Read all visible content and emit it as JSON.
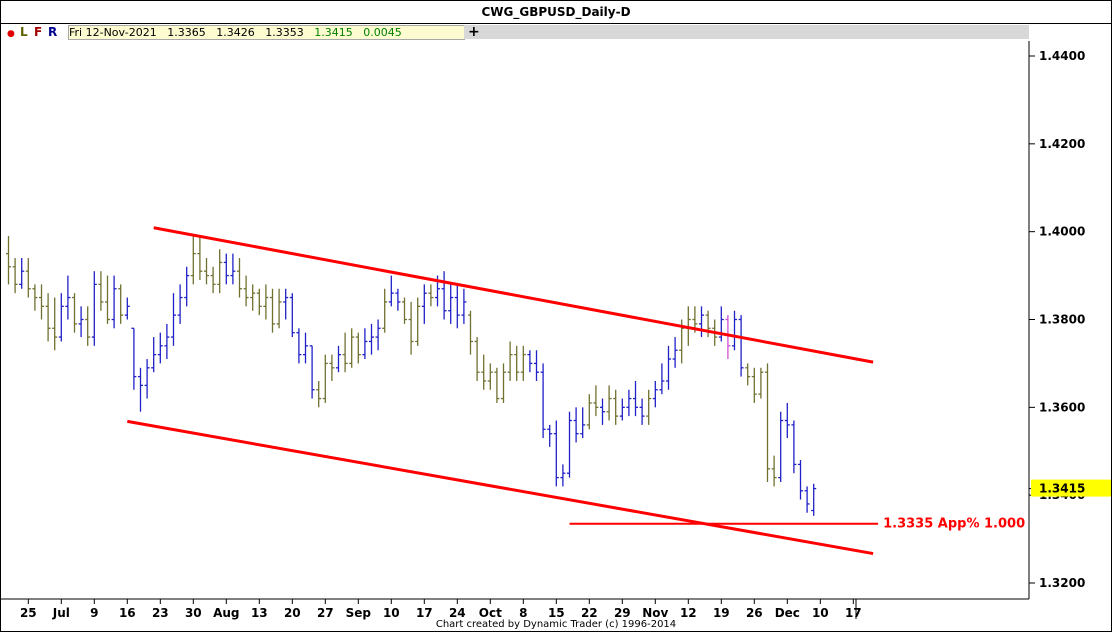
{
  "window": {
    "title": "CWG_GBPUSD_Daily-D"
  },
  "toolbar": {
    "dot": "●",
    "buttons": [
      {
        "label": "L",
        "color": "#606000"
      },
      {
        "label": "F",
        "color": "#a00000"
      },
      {
        "label": "R",
        "color": "#000090"
      }
    ],
    "plus": "+"
  },
  "infobox": {
    "date": "Fri 12-Nov-2021",
    "open": "1.3365",
    "high": "1.3426",
    "low": "1.3353",
    "close": "1.3415",
    "change": "0.0045"
  },
  "footer": "Chart created by Dynamic Trader  (c) 1996-2014",
  "chart_data": {
    "type": "ohlc-bar",
    "title": "CWG_GBPUSD_Daily-D",
    "price_range": [
      1.315,
      1.447
    ],
    "y_ticks": [
      "1.4400",
      "1.4200",
      "1.4000",
      "1.3800",
      "1.3600",
      "1.3400",
      "1.3200"
    ],
    "y_tick_values": [
      1.44,
      1.42,
      1.4,
      1.38,
      1.36,
      1.34,
      1.32
    ],
    "x_labels": [
      "25",
      "Jul",
      "9",
      "16",
      "23",
      "30",
      "Aug",
      "13",
      "20",
      "27",
      "Sep",
      "10",
      "17",
      "24",
      "Oct",
      "8",
      "15",
      "22",
      "29",
      "Nov",
      "12",
      "19",
      "26",
      "Dec",
      "10",
      "17"
    ],
    "x_label_bars": [
      3,
      8,
      13,
      18,
      23,
      28,
      33,
      38,
      43,
      48,
      53,
      58,
      63,
      68,
      73,
      78,
      83,
      88,
      93,
      98,
      103,
      108,
      113,
      118,
      123,
      128
    ],
    "current_price_label": "1.3415",
    "current_price": 1.3415,
    "channel_lines": [
      {
        "from_bar": 22,
        "from_price": 1.4009,
        "to_bar": 131,
        "to_price": 1.3703
      },
      {
        "from_bar": 18,
        "from_price": 1.3568,
        "to_bar": 131,
        "to_price": 1.3267
      }
    ],
    "target": {
      "price": 1.3335,
      "from_bar": 85,
      "to_bar": 131,
      "label": "1.3335 App% 1.000"
    },
    "colors": {
      "up": "#2020c8",
      "down": "#707030",
      "special": "#d050d0",
      "channel": "#ff0000",
      "price_box": "#ffff00"
    },
    "bars": [
      {
        "o": 1.395,
        "h": 1.399,
        "l": 1.388,
        "c": 1.392,
        "dir": "down"
      },
      {
        "o": 1.392,
        "h": 1.394,
        "l": 1.386,
        "c": 1.388,
        "dir": "down"
      },
      {
        "o": 1.388,
        "h": 1.394,
        "l": 1.387,
        "c": 1.391,
        "dir": "up"
      },
      {
        "o": 1.391,
        "h": 1.394,
        "l": 1.385,
        "c": 1.387,
        "dir": "down"
      },
      {
        "o": 1.387,
        "h": 1.388,
        "l": 1.382,
        "c": 1.385,
        "dir": "down"
      },
      {
        "o": 1.385,
        "h": 1.388,
        "l": 1.38,
        "c": 1.383,
        "dir": "down"
      },
      {
        "o": 1.383,
        "h": 1.386,
        "l": 1.375,
        "c": 1.378,
        "dir": "down"
      },
      {
        "o": 1.378,
        "h": 1.385,
        "l": 1.373,
        "c": 1.376,
        "dir": "down"
      },
      {
        "o": 1.376,
        "h": 1.386,
        "l": 1.375,
        "c": 1.383,
        "dir": "up"
      },
      {
        "o": 1.383,
        "h": 1.39,
        "l": 1.38,
        "c": 1.385,
        "dir": "up"
      },
      {
        "o": 1.385,
        "h": 1.386,
        "l": 1.377,
        "c": 1.379,
        "dir": "down"
      },
      {
        "o": 1.379,
        "h": 1.383,
        "l": 1.376,
        "c": 1.38,
        "dir": "up"
      },
      {
        "o": 1.38,
        "h": 1.383,
        "l": 1.374,
        "c": 1.376,
        "dir": "down"
      },
      {
        "o": 1.376,
        "h": 1.391,
        "l": 1.374,
        "c": 1.388,
        "dir": "up"
      },
      {
        "o": 1.388,
        "h": 1.391,
        "l": 1.382,
        "c": 1.384,
        "dir": "down"
      },
      {
        "o": 1.384,
        "h": 1.39,
        "l": 1.379,
        "c": 1.38,
        "dir": "down"
      },
      {
        "o": 1.38,
        "h": 1.39,
        "l": 1.378,
        "c": 1.387,
        "dir": "up"
      },
      {
        "o": 1.387,
        "h": 1.388,
        "l": 1.379,
        "c": 1.381,
        "dir": "down"
      },
      {
        "o": 1.381,
        "h": 1.385,
        "l": 1.38,
        "c": 1.383,
        "dir": "up"
      },
      {
        "o": 1.378,
        "h": 1.378,
        "l": 1.364,
        "c": 1.367,
        "dir": "up"
      },
      {
        "o": 1.367,
        "h": 1.369,
        "l": 1.359,
        "c": 1.365,
        "dir": "up"
      },
      {
        "o": 1.365,
        "h": 1.371,
        "l": 1.362,
        "c": 1.369,
        "dir": "up"
      },
      {
        "o": 1.369,
        "h": 1.376,
        "l": 1.368,
        "c": 1.372,
        "dir": "up"
      },
      {
        "o": 1.372,
        "h": 1.377,
        "l": 1.37,
        "c": 1.374,
        "dir": "up"
      },
      {
        "o": 1.374,
        "h": 1.379,
        "l": 1.371,
        "c": 1.376,
        "dir": "up"
      },
      {
        "o": 1.376,
        "h": 1.386,
        "l": 1.374,
        "c": 1.381,
        "dir": "up"
      },
      {
        "o": 1.381,
        "h": 1.388,
        "l": 1.379,
        "c": 1.385,
        "dir": "up"
      },
      {
        "o": 1.385,
        "h": 1.392,
        "l": 1.383,
        "c": 1.39,
        "dir": "up"
      },
      {
        "o": 1.39,
        "h": 1.399,
        "l": 1.388,
        "c": 1.395,
        "dir": "down"
      },
      {
        "o": 1.395,
        "h": 1.399,
        "l": 1.389,
        "c": 1.391,
        "dir": "down"
      },
      {
        "o": 1.391,
        "h": 1.394,
        "l": 1.388,
        "c": 1.39,
        "dir": "down"
      },
      {
        "o": 1.39,
        "h": 1.392,
        "l": 1.386,
        "c": 1.388,
        "dir": "down"
      },
      {
        "o": 1.388,
        "h": 1.396,
        "l": 1.386,
        "c": 1.393,
        "dir": "down"
      },
      {
        "o": 1.393,
        "h": 1.395,
        "l": 1.388,
        "c": 1.39,
        "dir": "up"
      },
      {
        "o": 1.39,
        "h": 1.395,
        "l": 1.388,
        "c": 1.391,
        "dir": "up"
      },
      {
        "o": 1.391,
        "h": 1.394,
        "l": 1.385,
        "c": 1.387,
        "dir": "down"
      },
      {
        "o": 1.387,
        "h": 1.39,
        "l": 1.383,
        "c": 1.385,
        "dir": "down"
      },
      {
        "o": 1.385,
        "h": 1.388,
        "l": 1.382,
        "c": 1.386,
        "dir": "down"
      },
      {
        "o": 1.386,
        "h": 1.387,
        "l": 1.381,
        "c": 1.383,
        "dir": "down"
      },
      {
        "o": 1.383,
        "h": 1.388,
        "l": 1.38,
        "c": 1.385,
        "dir": "down"
      },
      {
        "o": 1.385,
        "h": 1.387,
        "l": 1.377,
        "c": 1.379,
        "dir": "down"
      },
      {
        "o": 1.379,
        "h": 1.387,
        "l": 1.378,
        "c": 1.384,
        "dir": "down"
      },
      {
        "o": 1.384,
        "h": 1.387,
        "l": 1.38,
        "c": 1.385,
        "dir": "up"
      },
      {
        "o": 1.385,
        "h": 1.386,
        "l": 1.376,
        "c": 1.377,
        "dir": "up"
      },
      {
        "o": 1.377,
        "h": 1.378,
        "l": 1.37,
        "c": 1.372,
        "dir": "up"
      },
      {
        "o": 1.372,
        "h": 1.377,
        "l": 1.37,
        "c": 1.374,
        "dir": "up"
      },
      {
        "o": 1.374,
        "h": 1.374,
        "l": 1.362,
        "c": 1.364,
        "dir": "up"
      },
      {
        "o": 1.364,
        "h": 1.366,
        "l": 1.36,
        "c": 1.362,
        "dir": "down"
      },
      {
        "o": 1.362,
        "h": 1.372,
        "l": 1.361,
        "c": 1.37,
        "dir": "down"
      },
      {
        "o": 1.37,
        "h": 1.372,
        "l": 1.366,
        "c": 1.369,
        "dir": "down"
      },
      {
        "o": 1.369,
        "h": 1.374,
        "l": 1.368,
        "c": 1.372,
        "dir": "up"
      },
      {
        "o": 1.372,
        "h": 1.377,
        "l": 1.368,
        "c": 1.37,
        "dir": "down"
      },
      {
        "o": 1.37,
        "h": 1.378,
        "l": 1.369,
        "c": 1.376,
        "dir": "down"
      },
      {
        "o": 1.376,
        "h": 1.377,
        "l": 1.37,
        "c": 1.372,
        "dir": "down"
      },
      {
        "o": 1.372,
        "h": 1.378,
        "l": 1.371,
        "c": 1.375,
        "dir": "up"
      },
      {
        "o": 1.375,
        "h": 1.379,
        "l": 1.372,
        "c": 1.376,
        "dir": "up"
      },
      {
        "o": 1.376,
        "h": 1.38,
        "l": 1.373,
        "c": 1.378,
        "dir": "up"
      },
      {
        "o": 1.378,
        "h": 1.387,
        "l": 1.377,
        "c": 1.384,
        "dir": "down"
      },
      {
        "o": 1.384,
        "h": 1.39,
        "l": 1.383,
        "c": 1.386,
        "dir": "up"
      },
      {
        "o": 1.386,
        "h": 1.387,
        "l": 1.382,
        "c": 1.384,
        "dir": "up"
      },
      {
        "o": 1.384,
        "h": 1.385,
        "l": 1.379,
        "c": 1.38,
        "dir": "down"
      },
      {
        "o": 1.38,
        "h": 1.384,
        "l": 1.372,
        "c": 1.375,
        "dir": "down"
      },
      {
        "o": 1.375,
        "h": 1.385,
        "l": 1.374,
        "c": 1.383,
        "dir": "down"
      },
      {
        "o": 1.383,
        "h": 1.388,
        "l": 1.379,
        "c": 1.386,
        "dir": "up"
      },
      {
        "o": 1.386,
        "h": 1.388,
        "l": 1.383,
        "c": 1.385,
        "dir": "down"
      },
      {
        "o": 1.385,
        "h": 1.39,
        "l": 1.383,
        "c": 1.387,
        "dir": "up"
      },
      {
        "o": 1.387,
        "h": 1.391,
        "l": 1.38,
        "c": 1.382,
        "dir": "up"
      },
      {
        "o": 1.382,
        "h": 1.388,
        "l": 1.379,
        "c": 1.385,
        "dir": "up"
      },
      {
        "o": 1.385,
        "h": 1.388,
        "l": 1.378,
        "c": 1.381,
        "dir": "up"
      },
      {
        "o": 1.381,
        "h": 1.387,
        "l": 1.379,
        "c": 1.384,
        "dir": "up"
      },
      {
        "o": 1.381,
        "h": 1.382,
        "l": 1.372,
        "c": 1.375,
        "dir": "down"
      },
      {
        "o": 1.375,
        "h": 1.376,
        "l": 1.366,
        "c": 1.368,
        "dir": "down"
      },
      {
        "o": 1.368,
        "h": 1.372,
        "l": 1.364,
        "c": 1.366,
        "dir": "down"
      },
      {
        "o": 1.366,
        "h": 1.37,
        "l": 1.364,
        "c": 1.368,
        "dir": "down"
      },
      {
        "o": 1.368,
        "h": 1.369,
        "l": 1.361,
        "c": 1.362,
        "dir": "down"
      },
      {
        "o": 1.362,
        "h": 1.37,
        "l": 1.361,
        "c": 1.368,
        "dir": "down"
      },
      {
        "o": 1.368,
        "h": 1.375,
        "l": 1.366,
        "c": 1.372,
        "dir": "down"
      },
      {
        "o": 1.372,
        "h": 1.374,
        "l": 1.366,
        "c": 1.368,
        "dir": "down"
      },
      {
        "o": 1.368,
        "h": 1.374,
        "l": 1.366,
        "c": 1.372,
        "dir": "down"
      },
      {
        "o": 1.372,
        "h": 1.373,
        "l": 1.368,
        "c": 1.37,
        "dir": "up"
      },
      {
        "o": 1.37,
        "h": 1.373,
        "l": 1.366,
        "c": 1.368,
        "dir": "up"
      },
      {
        "o": 1.368,
        "h": 1.37,
        "l": 1.353,
        "c": 1.355,
        "dir": "up"
      },
      {
        "o": 1.355,
        "h": 1.356,
        "l": 1.351,
        "c": 1.354,
        "dir": "up"
      },
      {
        "o": 1.354,
        "h": 1.357,
        "l": 1.342,
        "c": 1.344,
        "dir": "up"
      },
      {
        "o": 1.344,
        "h": 1.347,
        "l": 1.342,
        "c": 1.345,
        "dir": "up"
      },
      {
        "o": 1.345,
        "h": 1.359,
        "l": 1.344,
        "c": 1.357,
        "dir": "up"
      },
      {
        "o": 1.357,
        "h": 1.36,
        "l": 1.352,
        "c": 1.354,
        "dir": "up"
      },
      {
        "o": 1.354,
        "h": 1.36,
        "l": 1.353,
        "c": 1.356,
        "dir": "up"
      },
      {
        "o": 1.356,
        "h": 1.363,
        "l": 1.355,
        "c": 1.361,
        "dir": "down"
      },
      {
        "o": 1.361,
        "h": 1.365,
        "l": 1.358,
        "c": 1.36,
        "dir": "down"
      },
      {
        "o": 1.36,
        "h": 1.362,
        "l": 1.356,
        "c": 1.359,
        "dir": "up"
      },
      {
        "o": 1.359,
        "h": 1.365,
        "l": 1.357,
        "c": 1.362,
        "dir": "down"
      },
      {
        "o": 1.362,
        "h": 1.364,
        "l": 1.356,
        "c": 1.358,
        "dir": "down"
      },
      {
        "o": 1.358,
        "h": 1.362,
        "l": 1.357,
        "c": 1.36,
        "dir": "up"
      },
      {
        "o": 1.36,
        "h": 1.364,
        "l": 1.358,
        "c": 1.362,
        "dir": "up"
      },
      {
        "o": 1.362,
        "h": 1.366,
        "l": 1.358,
        "c": 1.36,
        "dir": "up"
      },
      {
        "o": 1.36,
        "h": 1.362,
        "l": 1.356,
        "c": 1.358,
        "dir": "up"
      },
      {
        "o": 1.358,
        "h": 1.364,
        "l": 1.356,
        "c": 1.362,
        "dir": "down"
      },
      {
        "o": 1.362,
        "h": 1.366,
        "l": 1.36,
        "c": 1.364,
        "dir": "up"
      },
      {
        "o": 1.364,
        "h": 1.37,
        "l": 1.363,
        "c": 1.366,
        "dir": "up"
      },
      {
        "o": 1.366,
        "h": 1.374,
        "l": 1.364,
        "c": 1.371,
        "dir": "up"
      },
      {
        "o": 1.371,
        "h": 1.376,
        "l": 1.369,
        "c": 1.373,
        "dir": "up"
      },
      {
        "o": 1.373,
        "h": 1.38,
        "l": 1.37,
        "c": 1.378,
        "dir": "down"
      },
      {
        "o": 1.378,
        "h": 1.383,
        "l": 1.374,
        "c": 1.38,
        "dir": "down"
      },
      {
        "o": 1.38,
        "h": 1.383,
        "l": 1.377,
        "c": 1.379,
        "dir": "down"
      },
      {
        "o": 1.379,
        "h": 1.383,
        "l": 1.376,
        "c": 1.381,
        "dir": "up"
      },
      {
        "o": 1.381,
        "h": 1.382,
        "l": 1.376,
        "c": 1.378,
        "dir": "down"
      },
      {
        "o": 1.378,
        "h": 1.38,
        "l": 1.374,
        "c": 1.376,
        "dir": "down"
      },
      {
        "o": 1.376,
        "h": 1.383,
        "l": 1.375,
        "c": 1.38,
        "dir": "up"
      },
      {
        "o": 1.38,
        "h": 1.381,
        "l": 1.371,
        "c": 1.374,
        "dir": "special"
      },
      {
        "o": 1.374,
        "h": 1.382,
        "l": 1.373,
        "c": 1.38,
        "dir": "up"
      },
      {
        "o": 1.38,
        "h": 1.381,
        "l": 1.367,
        "c": 1.369,
        "dir": "up"
      },
      {
        "o": 1.369,
        "h": 1.37,
        "l": 1.365,
        "c": 1.367,
        "dir": "down"
      },
      {
        "o": 1.367,
        "h": 1.369,
        "l": 1.361,
        "c": 1.363,
        "dir": "down"
      },
      {
        "o": 1.363,
        "h": 1.369,
        "l": 1.362,
        "c": 1.368,
        "dir": "down"
      },
      {
        "o": 1.368,
        "h": 1.37,
        "l": 1.343,
        "c": 1.346,
        "dir": "down"
      },
      {
        "o": 1.346,
        "h": 1.349,
        "l": 1.342,
        "c": 1.344,
        "dir": "down"
      },
      {
        "o": 1.344,
        "h": 1.359,
        "l": 1.343,
        "c": 1.357,
        "dir": "up"
      },
      {
        "o": 1.357,
        "h": 1.361,
        "l": 1.353,
        "c": 1.356,
        "dir": "up"
      },
      {
        "o": 1.356,
        "h": 1.357,
        "l": 1.345,
        "c": 1.347,
        "dir": "up"
      },
      {
        "o": 1.347,
        "h": 1.348,
        "l": 1.339,
        "c": 1.341,
        "dir": "up"
      },
      {
        "o": 1.341,
        "h": 1.342,
        "l": 1.336,
        "c": 1.338,
        "dir": "up"
      },
      {
        "o": 1.3365,
        "h": 1.3426,
        "l": 1.3353,
        "c": 1.3415,
        "dir": "up"
      }
    ]
  }
}
